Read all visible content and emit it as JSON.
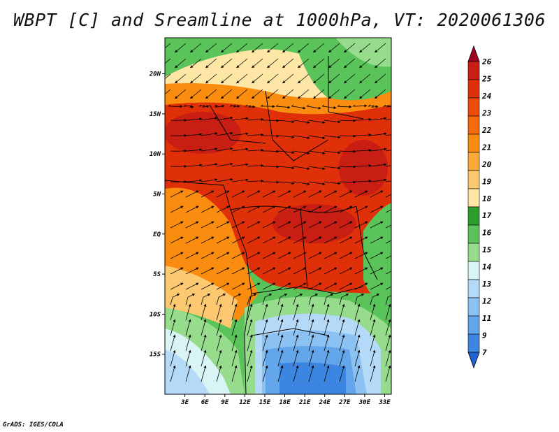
{
  "title": "WBPT [C] and Sreamline at 1000hPa, VT: 2020061306",
  "footer": "GrADS: IGES/COLA",
  "map": {
    "lat_labels": [
      "20N",
      "15N",
      "10N",
      "5N",
      "EQ",
      "5S",
      "10S",
      "15S"
    ],
    "lat_values": [
      20,
      15,
      10,
      5,
      0,
      -5,
      -10,
      -15
    ],
    "lon_labels": [
      "3E",
      "6E",
      "9E",
      "12E",
      "15E",
      "18E",
      "21E",
      "24E",
      "27E",
      "30E",
      "33E"
    ],
    "lon_values": [
      3,
      6,
      9,
      12,
      15,
      18,
      21,
      24,
      27,
      30,
      33
    ],
    "lon_range": [
      0,
      34
    ],
    "lat_range": [
      -20,
      24.5
    ]
  },
  "colorbar": {
    "labels": [
      "26",
      "25",
      "24",
      "23",
      "22",
      "21",
      "20",
      "19",
      "18",
      "17",
      "16",
      "15",
      "14",
      "13",
      "12",
      "11",
      "9",
      "7"
    ],
    "colors_top_to_bottom": [
      "#a0001e",
      "#c81e14",
      "#e0300a",
      "#ee4a0c",
      "#f66a0a",
      "#fa8c10",
      "#fbaa3a",
      "#fcc870",
      "#fde6a6",
      "#2ca02c",
      "#5ac35a",
      "#96dc8c",
      "#d8f4f4",
      "#b4daf8",
      "#8cc2f2",
      "#64a6ec",
      "#3c86e2",
      "#2064d2"
    ]
  }
}
